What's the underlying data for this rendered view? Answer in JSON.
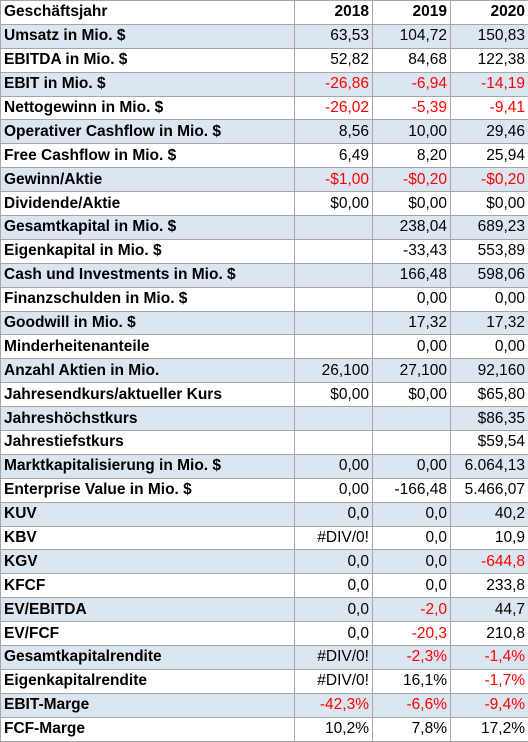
{
  "header": {
    "label": "Geschäftsjahr",
    "years": [
      "2018",
      "2019",
      "2020"
    ]
  },
  "colors": {
    "shaded_row": "#dce6f1",
    "negative": "#ff0000",
    "grid": "#a6a6a6"
  },
  "rows": [
    {
      "label": "Umsatz in Mio. $",
      "shaded": true,
      "values": [
        "63,53",
        "104,72",
        "150,83"
      ],
      "neg": [
        false,
        false,
        false
      ]
    },
    {
      "label": "EBITDA in Mio. $",
      "shaded": false,
      "values": [
        "52,82",
        "84,68",
        "122,38"
      ],
      "neg": [
        false,
        false,
        false
      ]
    },
    {
      "label": "EBIT in Mio. $",
      "shaded": true,
      "values": [
        "-26,86",
        "-6,94",
        "-14,19"
      ],
      "neg": [
        true,
        true,
        true
      ]
    },
    {
      "label": "Nettogewinn in Mio. $",
      "shaded": false,
      "values": [
        "-26,02",
        "-5,39",
        "-9,41"
      ],
      "neg": [
        true,
        true,
        true
      ]
    },
    {
      "label": "Operativer Cashflow in Mio. $",
      "shaded": true,
      "values": [
        "8,56",
        "10,00",
        "29,46"
      ],
      "neg": [
        false,
        false,
        false
      ]
    },
    {
      "label": "Free Cashflow in Mio. $",
      "shaded": false,
      "values": [
        "6,49",
        "8,20",
        "25,94"
      ],
      "neg": [
        false,
        false,
        false
      ]
    },
    {
      "label": "Gewinn/Aktie",
      "shaded": true,
      "values": [
        "-$1,00",
        "-$0,20",
        "-$0,20"
      ],
      "neg": [
        true,
        true,
        true
      ]
    },
    {
      "label": "Dividende/Aktie",
      "shaded": false,
      "values": [
        "$0,00",
        "$0,00",
        "$0,00"
      ],
      "neg": [
        false,
        false,
        false
      ]
    },
    {
      "label": "Gesamtkapital in Mio. $",
      "shaded": true,
      "values": [
        "",
        "238,04",
        "689,23"
      ],
      "neg": [
        false,
        false,
        false
      ]
    },
    {
      "label": "Eigenkapital in Mio. $",
      "shaded": false,
      "values": [
        "",
        "-33,43",
        "553,89"
      ],
      "neg": [
        false,
        false,
        false
      ]
    },
    {
      "label": "Cash und Investments in Mio. $",
      "shaded": true,
      "values": [
        "",
        "166,48",
        "598,06"
      ],
      "neg": [
        false,
        false,
        false
      ]
    },
    {
      "label": "Finanzschulden in Mio. $",
      "shaded": false,
      "values": [
        "",
        "0,00",
        "0,00"
      ],
      "neg": [
        false,
        false,
        false
      ]
    },
    {
      "label": "Goodwill in Mio. $",
      "shaded": true,
      "values": [
        "",
        "17,32",
        "17,32"
      ],
      "neg": [
        false,
        false,
        false
      ]
    },
    {
      "label": "Minderheitenanteile",
      "shaded": false,
      "values": [
        "",
        "0,00",
        "0,00"
      ],
      "neg": [
        false,
        false,
        false
      ]
    },
    {
      "label": "Anzahl Aktien in Mio.",
      "shaded": true,
      "values": [
        "26,100",
        "27,100",
        "92,160"
      ],
      "neg": [
        false,
        false,
        false
      ]
    },
    {
      "label": "Jahresendkurs/aktueller Kurs",
      "shaded": false,
      "values": [
        "$0,00",
        "$0,00",
        "$65,80"
      ],
      "neg": [
        false,
        false,
        false
      ]
    },
    {
      "label": "Jahreshöchstkurs",
      "shaded": true,
      "values": [
        "",
        "",
        "$86,35"
      ],
      "neg": [
        false,
        false,
        false
      ]
    },
    {
      "label": "Jahrestiefstkurs",
      "shaded": false,
      "values": [
        "",
        "",
        "$59,54"
      ],
      "neg": [
        false,
        false,
        false
      ]
    },
    {
      "label": "Marktkapitalisierung in Mio. $",
      "shaded": true,
      "values": [
        "0,00",
        "0,00",
        "6.064,13"
      ],
      "neg": [
        false,
        false,
        false
      ]
    },
    {
      "label": "Enterprise Value in Mio. $",
      "shaded": false,
      "values": [
        "0,00",
        "-166,48",
        "5.466,07"
      ],
      "neg": [
        false,
        false,
        false
      ]
    },
    {
      "label": "KUV",
      "shaded": true,
      "values": [
        "0,0",
        "0,0",
        "40,2"
      ],
      "neg": [
        false,
        false,
        false
      ]
    },
    {
      "label": "KBV",
      "shaded": false,
      "values": [
        "#DIV/0!",
        "0,0",
        "10,9"
      ],
      "neg": [
        false,
        false,
        false
      ]
    },
    {
      "label": "KGV",
      "shaded": true,
      "values": [
        "0,0",
        "0,0",
        "-644,8"
      ],
      "neg": [
        false,
        false,
        true
      ]
    },
    {
      "label": "KFCF",
      "shaded": false,
      "values": [
        "0,0",
        "0,0",
        "233,8"
      ],
      "neg": [
        false,
        false,
        false
      ]
    },
    {
      "label": "EV/EBITDA",
      "shaded": true,
      "values": [
        "0,0",
        "-2,0",
        "44,7"
      ],
      "neg": [
        false,
        true,
        false
      ]
    },
    {
      "label": "EV/FCF",
      "shaded": false,
      "values": [
        "0,0",
        "-20,3",
        "210,8"
      ],
      "neg": [
        false,
        true,
        false
      ]
    },
    {
      "label": "Gesamtkapitalrendite",
      "shaded": true,
      "values": [
        "#DIV/0!",
        "-2,3%",
        "-1,4%"
      ],
      "neg": [
        false,
        true,
        true
      ]
    },
    {
      "label": "Eigenkapitalrendite",
      "shaded": false,
      "values": [
        "#DIV/0!",
        "16,1%",
        "-1,7%"
      ],
      "neg": [
        false,
        false,
        true
      ]
    },
    {
      "label": "EBIT-Marge",
      "shaded": true,
      "values": [
        "-42,3%",
        "-6,6%",
        "-9,4%"
      ],
      "neg": [
        true,
        true,
        true
      ]
    },
    {
      "label": "FCF-Marge",
      "shaded": false,
      "values": [
        "10,2%",
        "7,8%",
        "17,2%"
      ],
      "neg": [
        false,
        false,
        false
      ]
    }
  ]
}
